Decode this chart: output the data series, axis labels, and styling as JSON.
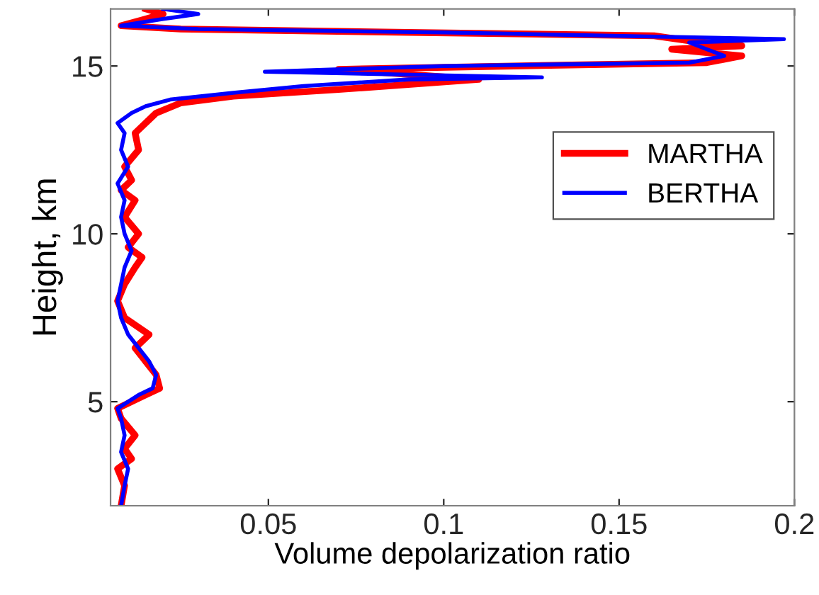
{
  "chart_data": {
    "type": "line",
    "xlabel": "Volume depolarization ratio",
    "ylabel": "Height, km",
    "xlim": [
      0.005,
      0.2
    ],
    "xticks": [
      0.05,
      0.1,
      0.15,
      0.2
    ],
    "ylim": [
      1.9,
      16.7
    ],
    "yticks": [
      5,
      10,
      15
    ],
    "grid": false,
    "legend": "top right",
    "marker": "none",
    "line_style": "solid",
    "series": [
      {
        "name": "MARTHA",
        "color": "#ff0000",
        "x": [
          0.008,
          0.009,
          0.007,
          0.011,
          0.009,
          0.012,
          0.008,
          0.007,
          0.011,
          0.015,
          0.019,
          0.018,
          0.015,
          0.012,
          0.016,
          0.009,
          0.007,
          0.009,
          0.012,
          0.014,
          0.01,
          0.013,
          0.009,
          0.012,
          0.008,
          0.011,
          0.009,
          0.013,
          0.012,
          0.018,
          0.025,
          0.04,
          0.07,
          0.11,
          0.09,
          0.07,
          0.12,
          0.175,
          0.185,
          0.165,
          0.185,
          0.17,
          0.16,
          0.09,
          0.025,
          0.008,
          0.015,
          0.02,
          0.015
        ],
        "values": [
          1.9,
          2.5,
          3.0,
          3.3,
          3.6,
          4.0,
          4.5,
          4.8,
          5.0,
          5.2,
          5.4,
          5.8,
          6.2,
          6.6,
          7.0,
          7.5,
          8.0,
          8.5,
          9.0,
          9.3,
          9.6,
          10.0,
          10.5,
          11.0,
          11.3,
          11.6,
          12.0,
          12.5,
          13.0,
          13.6,
          13.9,
          14.1,
          14.3,
          14.6,
          14.75,
          14.9,
          15.0,
          15.1,
          15.3,
          15.5,
          15.6,
          15.75,
          15.9,
          16.0,
          16.1,
          16.2,
          16.4,
          16.55,
          16.7
        ]
      },
      {
        "name": "BERTHA",
        "color": "#0000ff",
        "x": [
          0.008,
          0.009,
          0.01,
          0.008,
          0.009,
          0.008,
          0.007,
          0.01,
          0.013,
          0.017,
          0.018,
          0.016,
          0.013,
          0.01,
          0.008,
          0.007,
          0.008,
          0.009,
          0.011,
          0.009,
          0.008,
          0.009,
          0.007,
          0.01,
          0.008,
          0.009,
          0.007,
          0.011,
          0.015,
          0.022,
          0.04,
          0.06,
          0.09,
          0.128,
          0.049,
          0.1,
          0.17,
          0.18,
          0.175,
          0.17,
          0.197,
          0.1,
          0.03,
          0.008,
          0.02,
          0.03,
          0.02
        ],
        "values": [
          1.9,
          2.5,
          3.0,
          3.5,
          4.0,
          4.5,
          4.8,
          5.0,
          5.2,
          5.4,
          5.8,
          6.2,
          6.6,
          7.0,
          7.5,
          8.0,
          8.5,
          9.0,
          9.5,
          10.0,
          10.5,
          11.0,
          11.5,
          12.0,
          12.5,
          13.0,
          13.3,
          13.6,
          13.8,
          14.0,
          14.2,
          14.4,
          14.6,
          14.66,
          14.83,
          15.0,
          15.1,
          15.3,
          15.5,
          15.7,
          15.8,
          16.0,
          16.1,
          16.2,
          16.4,
          16.55,
          16.7
        ]
      }
    ]
  }
}
